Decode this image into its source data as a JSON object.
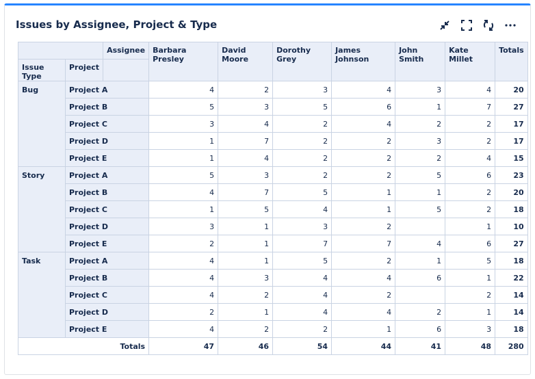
{
  "title": "Issues by Assignee, Project & Type",
  "table": {
    "header": {
      "assignee_label": "Assignee",
      "issue_type_label": "Issue Type",
      "project_label": "Project",
      "assignees": [
        "Barbara Presley",
        "David Moore",
        "Dorothy Grey",
        "James Johnson",
        "John Smith",
        "Kate Millet"
      ],
      "totals_label": "Totals"
    },
    "groups": [
      {
        "type": "Bug",
        "rows": [
          {
            "project": "Project A",
            "values": [
              4,
              2,
              3,
              4,
              3,
              4
            ],
            "total": 20
          },
          {
            "project": "Project B",
            "values": [
              5,
              3,
              5,
              6,
              1,
              7
            ],
            "total": 27
          },
          {
            "project": "Project C",
            "values": [
              3,
              4,
              2,
              4,
              2,
              2
            ],
            "total": 17
          },
          {
            "project": "Project D",
            "values": [
              1,
              7,
              2,
              2,
              3,
              2
            ],
            "total": 17
          },
          {
            "project": "Project E",
            "values": [
              1,
              4,
              2,
              2,
              2,
              4
            ],
            "total": 15
          }
        ]
      },
      {
        "type": "Story",
        "rows": [
          {
            "project": "Project A",
            "values": [
              5,
              3,
              2,
              2,
              5,
              6
            ],
            "total": 23
          },
          {
            "project": "Project B",
            "values": [
              4,
              7,
              5,
              1,
              1,
              2
            ],
            "total": 20
          },
          {
            "project": "Project C",
            "values": [
              1,
              5,
              4,
              1,
              5,
              2
            ],
            "total": 18
          },
          {
            "project": "Project D",
            "values": [
              3,
              1,
              3,
              2,
              null,
              1
            ],
            "total": 10
          },
          {
            "project": "Project E",
            "values": [
              2,
              1,
              7,
              7,
              4,
              6
            ],
            "total": 27
          }
        ]
      },
      {
        "type": "Task",
        "rows": [
          {
            "project": "Project A",
            "values": [
              4,
              1,
              5,
              2,
              1,
              5
            ],
            "total": 18
          },
          {
            "project": "Project B",
            "values": [
              4,
              3,
              4,
              4,
              6,
              1
            ],
            "total": 22
          },
          {
            "project": "Project C",
            "values": [
              4,
              2,
              4,
              2,
              null,
              2
            ],
            "total": 14
          },
          {
            "project": "Project D",
            "values": [
              2,
              1,
              4,
              4,
              2,
              1
            ],
            "total": 14
          },
          {
            "project": "Project E",
            "values": [
              4,
              2,
              2,
              1,
              6,
              3
            ],
            "total": 18
          }
        ]
      }
    ],
    "footer": {
      "label": "Totals",
      "values": [
        47,
        46,
        54,
        44,
        41,
        48
      ],
      "total": 280
    }
  }
}
